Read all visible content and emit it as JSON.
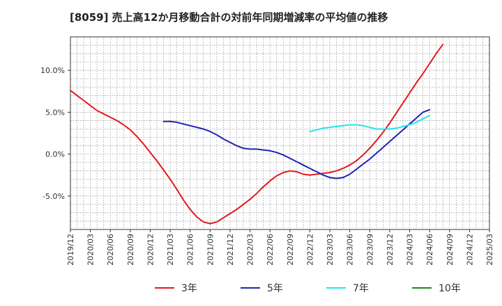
{
  "chart_data": {
    "type": "line",
    "title": "[8059]  売上高12か月移動合計の対前年同期増減率の平均値の推移",
    "xlabel": "",
    "ylabel": "",
    "x_ticks": [
      "2019/12",
      "2020/03",
      "2020/06",
      "2020/09",
      "2020/12",
      "2021/03",
      "2021/06",
      "2021/09",
      "2021/12",
      "2022/03",
      "2022/06",
      "2022/09",
      "2022/12",
      "2023/03",
      "2023/06",
      "2023/09",
      "2023/12",
      "2024/03",
      "2024/06",
      "2024/09",
      "2024/12",
      "2025/03"
    ],
    "y_ticks": [
      {
        "value": 10,
        "label": "10.0%"
      },
      {
        "value": 5,
        "label": "5.0%"
      },
      {
        "value": 0,
        "label": "0.0%"
      },
      {
        "value": -5,
        "label": "-5.0%"
      }
    ],
    "ylim": [
      -9.0,
      14.0
    ],
    "grid": true,
    "legend_position": "bottom",
    "series": [
      {
        "name": "3年",
        "color": "#e31a1c",
        "points": [
          [
            "2019/12",
            7.6
          ],
          [
            "2020/01",
            7.0
          ],
          [
            "2020/02",
            6.4
          ],
          [
            "2020/03",
            5.8
          ],
          [
            "2020/04",
            5.2
          ],
          [
            "2020/05",
            4.8
          ],
          [
            "2020/06",
            4.4
          ],
          [
            "2020/07",
            4.0
          ],
          [
            "2020/08",
            3.5
          ],
          [
            "2020/09",
            2.9
          ],
          [
            "2020/10",
            2.1
          ],
          [
            "2020/11",
            1.2
          ],
          [
            "2020/12",
            0.2
          ],
          [
            "2021/01",
            -0.8
          ],
          [
            "2021/02",
            -1.9
          ],
          [
            "2021/03",
            -3.0
          ],
          [
            "2021/04",
            -4.2
          ],
          [
            "2021/05",
            -5.5
          ],
          [
            "2021/06",
            -6.6
          ],
          [
            "2021/07",
            -7.5
          ],
          [
            "2021/08",
            -8.1
          ],
          [
            "2021/09",
            -8.3
          ],
          [
            "2021/10",
            -8.1
          ],
          [
            "2021/11",
            -7.6
          ],
          [
            "2021/12",
            -7.1
          ],
          [
            "2022/01",
            -6.6
          ],
          [
            "2022/02",
            -6.0
          ],
          [
            "2022/03",
            -5.4
          ],
          [
            "2022/04",
            -4.7
          ],
          [
            "2022/05",
            -3.9
          ],
          [
            "2022/06",
            -3.2
          ],
          [
            "2022/07",
            -2.6
          ],
          [
            "2022/08",
            -2.2
          ],
          [
            "2022/09",
            -2.0
          ],
          [
            "2022/10",
            -2.1
          ],
          [
            "2022/11",
            -2.4
          ],
          [
            "2022/12",
            -2.5
          ],
          [
            "2023/01",
            -2.4
          ],
          [
            "2023/02",
            -2.3
          ],
          [
            "2023/03",
            -2.2
          ],
          [
            "2023/04",
            -2.0
          ],
          [
            "2023/05",
            -1.7
          ],
          [
            "2023/06",
            -1.3
          ],
          [
            "2023/07",
            -0.8
          ],
          [
            "2023/08",
            -0.1
          ],
          [
            "2023/09",
            0.7
          ],
          [
            "2023/10",
            1.6
          ],
          [
            "2023/11",
            2.6
          ],
          [
            "2023/12",
            3.7
          ],
          [
            "2024/01",
            4.9
          ],
          [
            "2024/02",
            6.1
          ],
          [
            "2024/03",
            7.3
          ],
          [
            "2024/04",
            8.5
          ],
          [
            "2024/05",
            9.6
          ],
          [
            "2024/06",
            10.8
          ],
          [
            "2024/07",
            12.0
          ],
          [
            "2024/08",
            13.1
          ]
        ]
      },
      {
        "name": "5年",
        "color": "#1f24b4",
        "points": [
          [
            "2021/02",
            3.9
          ],
          [
            "2021/03",
            3.9
          ],
          [
            "2021/04",
            3.8
          ],
          [
            "2021/05",
            3.6
          ],
          [
            "2021/06",
            3.4
          ],
          [
            "2021/07",
            3.2
          ],
          [
            "2021/08",
            3.0
          ],
          [
            "2021/09",
            2.7
          ],
          [
            "2021/10",
            2.3
          ],
          [
            "2021/11",
            1.8
          ],
          [
            "2021/12",
            1.4
          ],
          [
            "2022/01",
            1.0
          ],
          [
            "2022/02",
            0.7
          ],
          [
            "2022/03",
            0.6
          ],
          [
            "2022/04",
            0.6
          ],
          [
            "2022/05",
            0.5
          ],
          [
            "2022/06",
            0.4
          ],
          [
            "2022/07",
            0.2
          ],
          [
            "2022/08",
            -0.1
          ],
          [
            "2022/09",
            -0.5
          ],
          [
            "2022/10",
            -0.9
          ],
          [
            "2022/11",
            -1.3
          ],
          [
            "2022/12",
            -1.7
          ],
          [
            "2023/01",
            -2.1
          ],
          [
            "2023/02",
            -2.5
          ],
          [
            "2023/03",
            -2.8
          ],
          [
            "2023/04",
            -2.9
          ],
          [
            "2023/05",
            -2.8
          ],
          [
            "2023/06",
            -2.4
          ],
          [
            "2023/07",
            -1.8
          ],
          [
            "2023/08",
            -1.2
          ],
          [
            "2023/09",
            -0.6
          ],
          [
            "2023/10",
            0.1
          ],
          [
            "2023/11",
            0.8
          ],
          [
            "2023/12",
            1.5
          ],
          [
            "2024/01",
            2.2
          ],
          [
            "2024/02",
            2.9
          ],
          [
            "2024/03",
            3.6
          ],
          [
            "2024/04",
            4.3
          ],
          [
            "2024/05",
            5.0
          ],
          [
            "2024/06",
            5.3
          ]
        ]
      },
      {
        "name": "7年",
        "color": "#22e5ee",
        "points": [
          [
            "2022/12",
            2.7
          ],
          [
            "2023/01",
            2.9
          ],
          [
            "2023/02",
            3.1
          ],
          [
            "2023/03",
            3.2
          ],
          [
            "2023/04",
            3.3
          ],
          [
            "2023/05",
            3.4
          ],
          [
            "2023/06",
            3.5
          ],
          [
            "2023/07",
            3.5
          ],
          [
            "2023/08",
            3.4
          ],
          [
            "2023/09",
            3.2
          ],
          [
            "2023/10",
            3.0
          ],
          [
            "2023/11",
            3.0
          ],
          [
            "2023/12",
            3.0
          ],
          [
            "2024/01",
            3.1
          ],
          [
            "2024/02",
            3.3
          ],
          [
            "2024/03",
            3.5
          ],
          [
            "2024/04",
            3.8
          ],
          [
            "2024/05",
            4.2
          ],
          [
            "2024/06",
            4.6
          ]
        ]
      },
      {
        "name": "10年",
        "color": "#1a8a1a",
        "points": []
      }
    ]
  }
}
